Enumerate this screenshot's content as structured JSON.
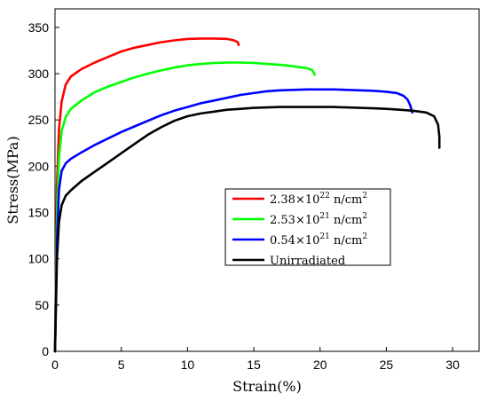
{
  "chart_data": {
    "type": "line",
    "title": "",
    "xlabel": "Strain(%)",
    "ylabel": "Stress(MPa)",
    "xlim": [
      0,
      32
    ],
    "ylim": [
      0,
      370
    ],
    "xticks": [
      0,
      5,
      10,
      15,
      20,
      25,
      30
    ],
    "yticks": [
      0,
      50,
      100,
      150,
      200,
      250,
      300,
      350
    ],
    "grid": false,
    "legend_position": "center-right",
    "series": [
      {
        "name": "2.38×10²² n/cm²",
        "legend": {
          "base": "2.38×10",
          "exp": "22",
          "unit": " n/cm",
          "unit_exp": "2"
        },
        "color": "#ff0000",
        "x": [
          0,
          0.15,
          0.3,
          0.5,
          0.8,
          1.2,
          2,
          3,
          4,
          5,
          6,
          7,
          8,
          9,
          10,
          11,
          12,
          13,
          13.5,
          13.8,
          13.85
        ],
        "y": [
          0,
          180,
          240,
          270,
          288,
          297,
          305,
          312,
          318,
          324,
          328,
          331,
          334,
          336,
          337.5,
          338,
          338,
          337.5,
          336,
          334,
          331
        ]
      },
      {
        "name": "2.53×10²¹ n/cm²",
        "legend": {
          "base": "2.53×10",
          "exp": "21",
          "unit": " n/cm",
          "unit_exp": "2"
        },
        "color": "#00ff00",
        "x": [
          0,
          0.15,
          0.3,
          0.5,
          0.8,
          1.2,
          2,
          3,
          4,
          5,
          6,
          7,
          8,
          9,
          10,
          11,
          12,
          13,
          14,
          15,
          16,
          17,
          18,
          19,
          19.4,
          19.6
        ],
        "y": [
          0,
          150,
          210,
          238,
          253,
          262,
          271,
          280,
          286,
          291,
          296,
          300,
          303.5,
          306.5,
          309,
          310.5,
          311.5,
          312,
          312,
          311.5,
          310.5,
          309.5,
          308,
          306,
          304,
          299
        ]
      },
      {
        "name": "0.54×10²¹ n/cm²",
        "legend": {
          "base": "0.54×10",
          "exp": "21",
          "unit": " n/cm",
          "unit_exp": "2"
        },
        "color": "#0000ff",
        "x": [
          0,
          0.15,
          0.3,
          0.5,
          0.8,
          1.2,
          2,
          3,
          4,
          5,
          6,
          7,
          8,
          9,
          10,
          11,
          12,
          13,
          14,
          15,
          16,
          17,
          18,
          19,
          20,
          21,
          22,
          23,
          24,
          25,
          25.8,
          26.3,
          26.6,
          26.8,
          26.95
        ],
        "y": [
          0,
          120,
          175,
          195,
          203,
          208,
          215,
          223,
          230,
          237,
          243,
          249,
          255,
          260,
          264,
          268,
          271,
          274,
          277,
          279,
          281,
          282,
          282.5,
          283,
          283,
          283,
          282.5,
          282,
          281.5,
          280.5,
          279,
          276,
          272,
          266,
          258
        ]
      },
      {
        "name": "Unirradiated",
        "legend": {
          "base": "Unirradiated",
          "exp": "",
          "unit": "",
          "unit_exp": ""
        },
        "color": "#000000",
        "x": [
          0,
          0.15,
          0.3,
          0.5,
          0.8,
          1.2,
          2,
          3,
          4,
          5,
          6,
          7,
          8,
          9,
          10,
          11,
          12,
          13,
          14,
          15,
          16,
          17,
          18,
          19,
          20,
          21,
          22,
          23,
          24,
          25,
          26,
          27,
          28,
          28.6,
          28.9,
          29.0,
          29.0
        ],
        "y": [
          0,
          100,
          140,
          158,
          168,
          174,
          184,
          194,
          204,
          214,
          224,
          234,
          242,
          249,
          254,
          257,
          259,
          261,
          262,
          263,
          263.5,
          264,
          264,
          264,
          264,
          264,
          263.5,
          263,
          262.5,
          262,
          261,
          260,
          258,
          254,
          245,
          232,
          220
        ]
      }
    ]
  }
}
